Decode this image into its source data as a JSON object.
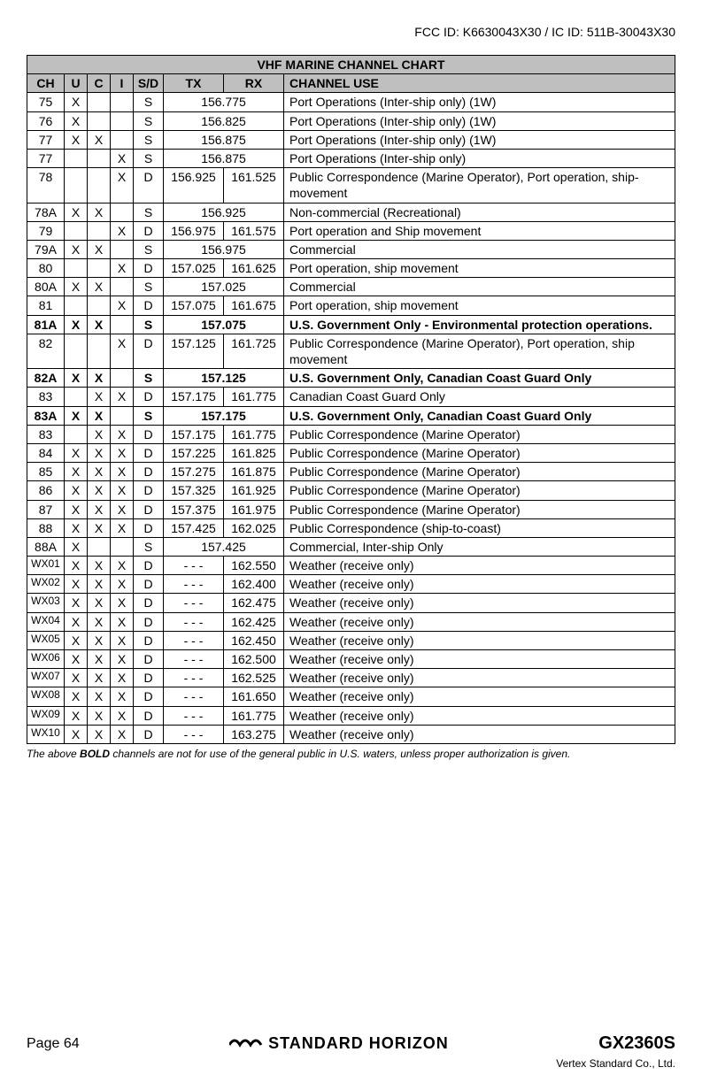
{
  "fcc_line": "FCC ID: K6630043X30 / IC ID: 511B-30043X30",
  "table": {
    "title": "VHF MARINE CHANNEL CHART",
    "headers": {
      "ch": "CH",
      "u": "U",
      "c": "C",
      "i": "I",
      "sd": "S/D",
      "tx": "TX",
      "rx": "RX",
      "use": "CHANNEL USE"
    },
    "rows": [
      {
        "ch": "75",
        "u": "X",
        "c": "",
        "i": "",
        "sd": "S",
        "tx": "",
        "rx": "",
        "merged": "156.775",
        "use": "Port Operations (Inter-ship only) (1W)",
        "bold": false
      },
      {
        "ch": "76",
        "u": "X",
        "c": "",
        "i": "",
        "sd": "S",
        "tx": "",
        "rx": "",
        "merged": "156.825",
        "use": "Port Operations (Inter-ship only) (1W)",
        "bold": false
      },
      {
        "ch": "77",
        "u": "X",
        "c": "X",
        "i": "",
        "sd": "S",
        "tx": "",
        "rx": "",
        "merged": "156.875",
        "use": "Port Operations (Inter-ship only) (1W)",
        "bold": false
      },
      {
        "ch": "77",
        "u": "",
        "c": "",
        "i": "X",
        "sd": "S",
        "tx": "",
        "rx": "",
        "merged": "156.875",
        "use": "Port Operations (Inter-ship only)",
        "bold": false
      },
      {
        "ch": "78",
        "u": "",
        "c": "",
        "i": "X",
        "sd": "D",
        "tx": "156.925",
        "rx": "161.525",
        "use": "Public Correspondence (Marine Operator), Port operation, ship-movement",
        "bold": false
      },
      {
        "ch": "78A",
        "u": "X",
        "c": "X",
        "i": "",
        "sd": "S",
        "tx": "",
        "rx": "",
        "merged": "156.925",
        "use": "Non-commercial (Recreational)",
        "bold": false
      },
      {
        "ch": "79",
        "u": "",
        "c": "",
        "i": "X",
        "sd": "D",
        "tx": "156.975",
        "rx": "161.575",
        "use": "Port operation and Ship movement",
        "bold": false
      },
      {
        "ch": "79A",
        "u": "X",
        "c": "X",
        "i": "",
        "sd": "S",
        "tx": "",
        "rx": "",
        "merged": "156.975",
        "use": "Commercial",
        "bold": false
      },
      {
        "ch": "80",
        "u": "",
        "c": "",
        "i": "X",
        "sd": "D",
        "tx": "157.025",
        "rx": "161.625",
        "use": "Port operation, ship movement",
        "bold": false
      },
      {
        "ch": "80A",
        "u": "X",
        "c": "X",
        "i": "",
        "sd": "S",
        "tx": "",
        "rx": "",
        "merged": "157.025",
        "use": "Commercial",
        "bold": false
      },
      {
        "ch": "81",
        "u": "",
        "c": "",
        "i": "X",
        "sd": "D",
        "tx": "157.075",
        "rx": "161.675",
        "use": "Port operation, ship movement",
        "bold": false
      },
      {
        "ch": "81A",
        "u": "X",
        "c": "X",
        "i": "",
        "sd": "S",
        "tx": "",
        "rx": "",
        "merged": "157.075",
        "use": "U.S. Government Only - Environmental protection operations.",
        "bold": true
      },
      {
        "ch": "82",
        "u": "",
        "c": "",
        "i": "X",
        "sd": "D",
        "tx": "157.125",
        "rx": "161.725",
        "use": "Public Correspondence (Marine Operator), Port operation, ship movement",
        "bold": false
      },
      {
        "ch": "82A",
        "u": "X",
        "c": "X",
        "i": "",
        "sd": "S",
        "tx": "",
        "rx": "",
        "merged": "157.125",
        "use": "U.S. Government Only, Canadian Coast Guard Only",
        "bold": true
      },
      {
        "ch": "83",
        "u": "",
        "c": "X",
        "i": "X",
        "sd": "D",
        "tx": "157.175",
        "rx": "161.775",
        "use": "Canadian Coast Guard Only",
        "bold": false
      },
      {
        "ch": "83A",
        "u": "X",
        "c": "X",
        "i": "",
        "sd": "S",
        "tx": "",
        "rx": "",
        "merged": "157.175",
        "use": "U.S. Government Only, Canadian Coast Guard Only",
        "bold": true
      },
      {
        "ch": "83",
        "u": "",
        "c": "X",
        "i": "X",
        "sd": "D",
        "tx": "157.175",
        "rx": "161.775",
        "use": "Public Correspondence (Marine Operator)",
        "bold": false
      },
      {
        "ch": "84",
        "u": "X",
        "c": "X",
        "i": "X",
        "sd": "D",
        "tx": "157.225",
        "rx": "161.825",
        "use": "Public Correspondence (Marine Operator)",
        "bold": false
      },
      {
        "ch": "85",
        "u": "X",
        "c": "X",
        "i": "X",
        "sd": "D",
        "tx": "157.275",
        "rx": "161.875",
        "use": "Public Correspondence (Marine Operator)",
        "bold": false
      },
      {
        "ch": "86",
        "u": "X",
        "c": "X",
        "i": "X",
        "sd": "D",
        "tx": "157.325",
        "rx": "161.925",
        "use": "Public Correspondence (Marine Operator)",
        "bold": false
      },
      {
        "ch": "87",
        "u": "X",
        "c": "X",
        "i": "X",
        "sd": "D",
        "tx": "157.375",
        "rx": "161.975",
        "use": "Public Correspondence (Marine Operator)",
        "bold": false
      },
      {
        "ch": "88",
        "u": "X",
        "c": "X",
        "i": "X",
        "sd": "D",
        "tx": "157.425",
        "rx": "162.025",
        "use": "Public Correspondence (ship-to-coast)",
        "bold": false
      },
      {
        "ch": "88A",
        "u": "X",
        "c": "",
        "i": "",
        "sd": "S",
        "tx": "",
        "rx": "",
        "merged": "157.425",
        "use": "Commercial, Inter-ship Only",
        "bold": false
      },
      {
        "ch": "WX01",
        "u": "X",
        "c": "X",
        "i": "X",
        "sd": "D",
        "tx": "- - -",
        "rx": "162.550",
        "use": "Weather (receive only)",
        "bold": false,
        "small": true
      },
      {
        "ch": "WX02",
        "u": "X",
        "c": "X",
        "i": "X",
        "sd": "D",
        "tx": "- - -",
        "rx": "162.400",
        "use": "Weather (receive only)",
        "bold": false,
        "small": true
      },
      {
        "ch": "WX03",
        "u": "X",
        "c": "X",
        "i": "X",
        "sd": "D",
        "tx": "- - -",
        "rx": "162.475",
        "use": "Weather (receive only)",
        "bold": false,
        "small": true
      },
      {
        "ch": "WX04",
        "u": "X",
        "c": "X",
        "i": "X",
        "sd": "D",
        "tx": "- - -",
        "rx": "162.425",
        "use": "Weather (receive only)",
        "bold": false,
        "small": true
      },
      {
        "ch": "WX05",
        "u": "X",
        "c": "X",
        "i": "X",
        "sd": "D",
        "tx": "- - -",
        "rx": "162.450",
        "use": "Weather (receive only)",
        "bold": false,
        "small": true
      },
      {
        "ch": "WX06",
        "u": "X",
        "c": "X",
        "i": "X",
        "sd": "D",
        "tx": "- - -",
        "rx": "162.500",
        "use": "Weather (receive only)",
        "bold": false,
        "small": true
      },
      {
        "ch": "WX07",
        "u": "X",
        "c": "X",
        "i": "X",
        "sd": "D",
        "tx": "- - -",
        "rx": "162.525",
        "use": "Weather (receive only)",
        "bold": false,
        "small": true
      },
      {
        "ch": "WX08",
        "u": "X",
        "c": "X",
        "i": "X",
        "sd": "D",
        "tx": "- - -",
        "rx": "161.650",
        "use": "Weather (receive only)",
        "bold": false,
        "small": true
      },
      {
        "ch": "WX09",
        "u": "X",
        "c": "X",
        "i": "X",
        "sd": "D",
        "tx": "- - -",
        "rx": "161.775",
        "use": "Weather (receive only)",
        "bold": false,
        "small": true
      },
      {
        "ch": "WX10",
        "u": "X",
        "c": "X",
        "i": "X",
        "sd": "D",
        "tx": "- - -",
        "rx": "163.275",
        "use": "Weather (receive only)",
        "bold": false,
        "small": true
      }
    ]
  },
  "footnote_pre": "The above ",
  "footnote_bold": "BOLD",
  "footnote_post": " channels are not for use of the general public in U.S. waters, unless proper authorization is given.",
  "footer": {
    "page": "Page 64",
    "brand": "STANDARD HORIZON",
    "model": "GX2360S",
    "vertex": "Vertex Standard Co., Ltd."
  },
  "colors": {
    "header_bg": "#bfbfbf",
    "border": "#000000",
    "text": "#000000",
    "background": "#ffffff"
  }
}
